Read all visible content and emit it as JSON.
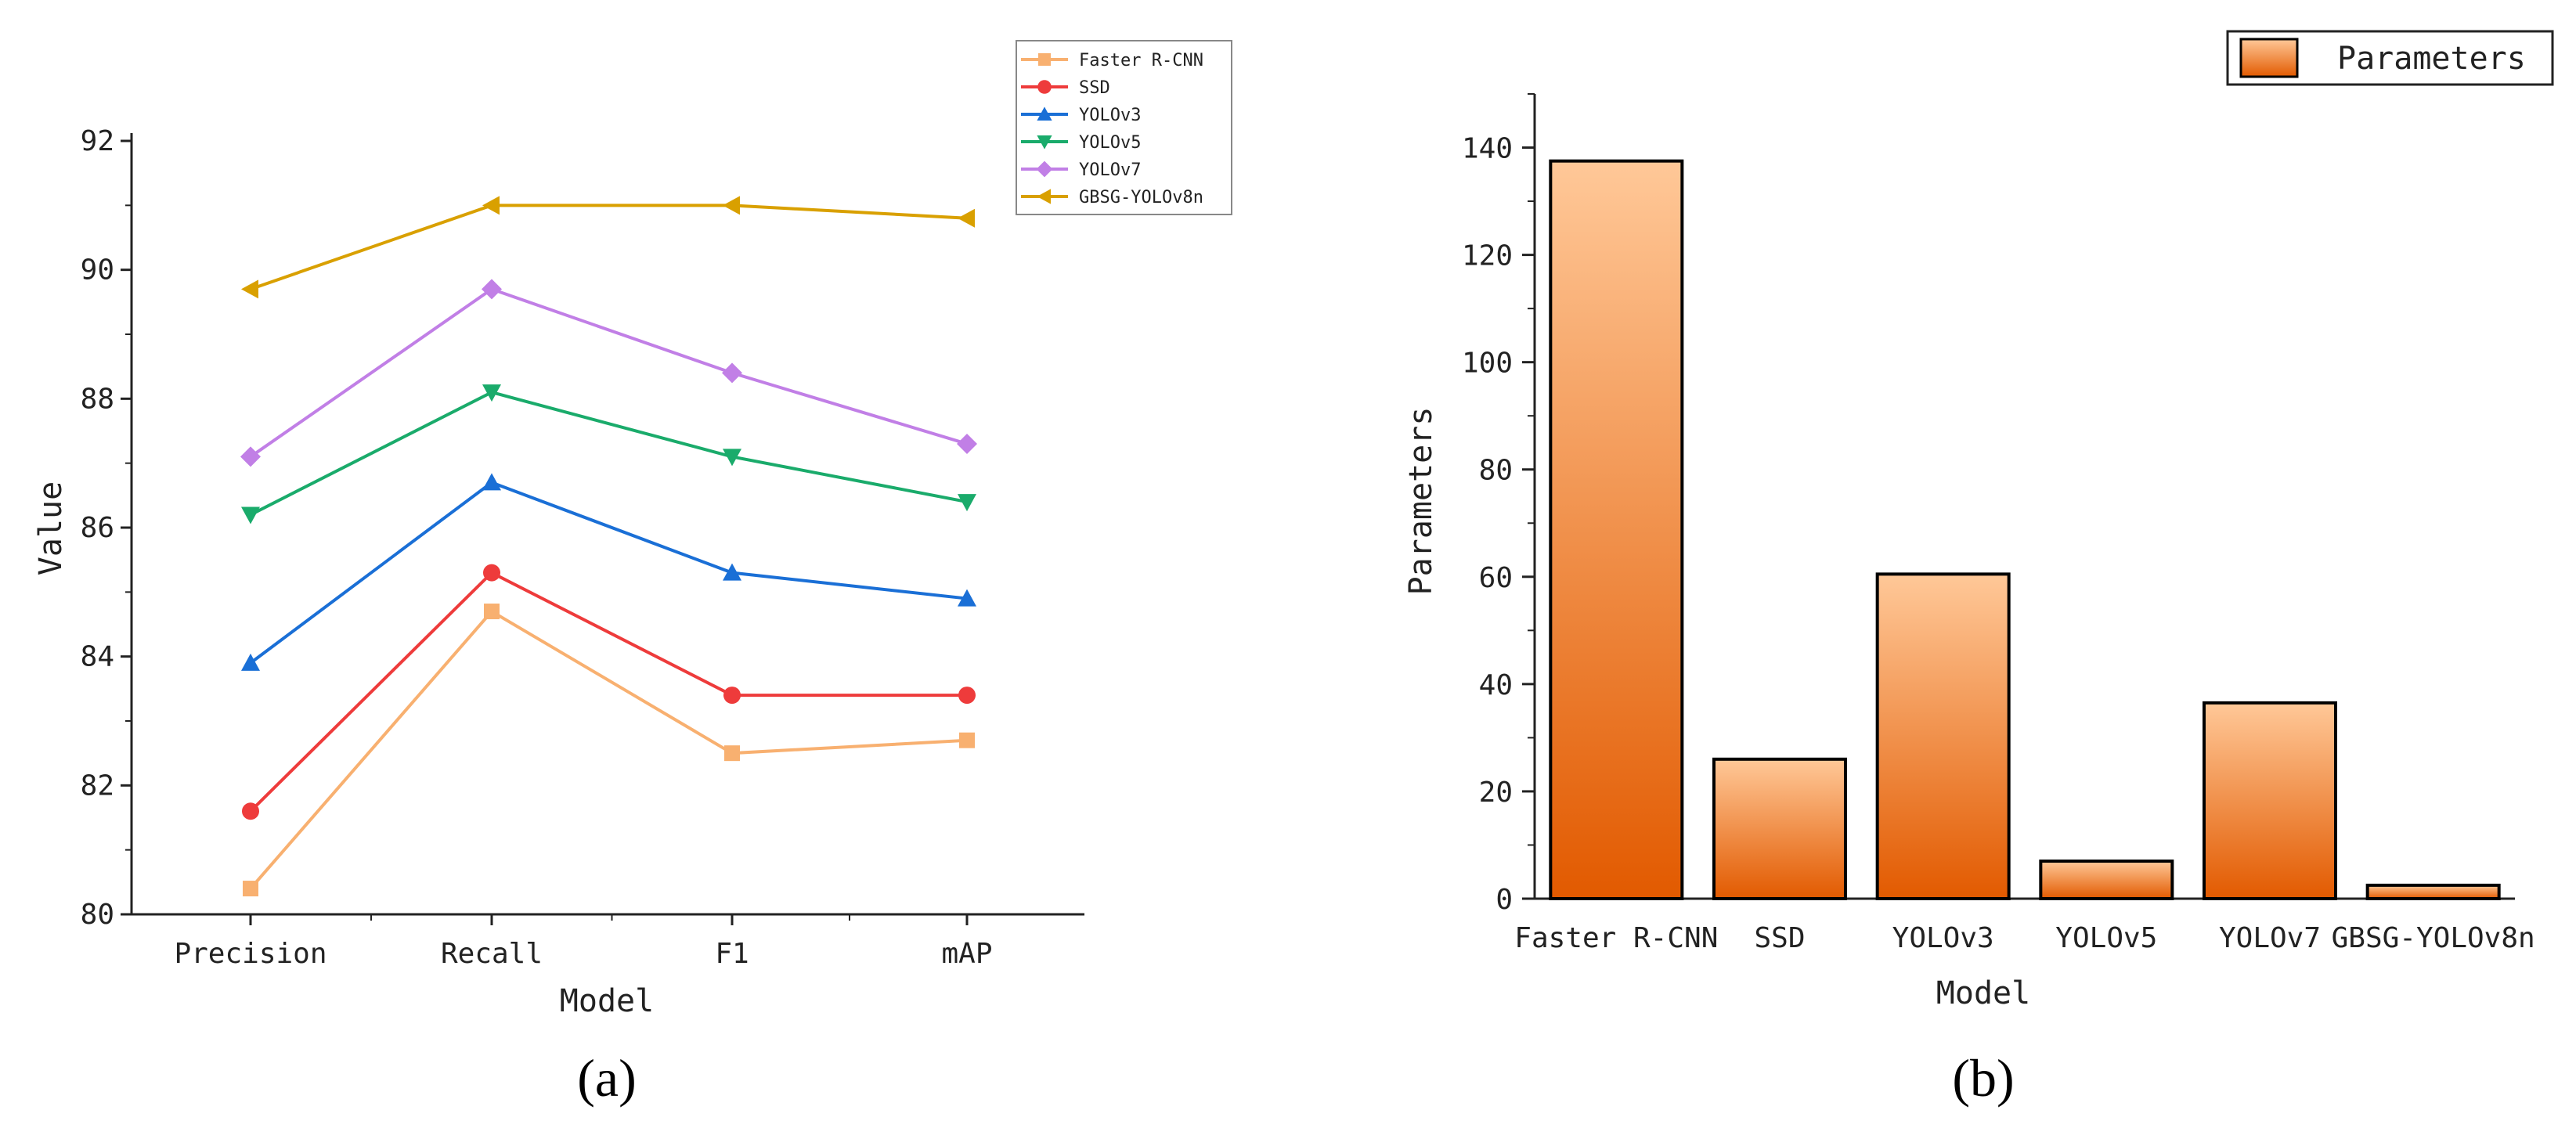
{
  "chart_data": [
    {
      "type": "line",
      "panel_label": "(a)",
      "categories": [
        "Precision",
        "Recall",
        "F1",
        "mAP"
      ],
      "xlabel": "Model",
      "ylabel": "Value",
      "ylim": [
        80,
        92
      ],
      "yticks": [
        80,
        82,
        84,
        86,
        88,
        90,
        92
      ],
      "legend_position": "top-right",
      "series": [
        {
          "name": "Faster R-CNN",
          "color": "#f8b070",
          "marker": "square",
          "values": [
            80.4,
            84.7,
            82.5,
            82.7
          ]
        },
        {
          "name": "SSD",
          "color": "#ee3b3b",
          "marker": "circle",
          "values": [
            81.6,
            85.3,
            83.4,
            83.4
          ]
        },
        {
          "name": "YOLOv3",
          "color": "#1a6fd6",
          "marker": "triangle-up",
          "values": [
            83.9,
            86.7,
            85.3,
            84.9
          ]
        },
        {
          "name": "YOLOv5",
          "color": "#1aab6b",
          "marker": "triangle-down",
          "values": [
            86.2,
            88.1,
            87.1,
            86.4
          ]
        },
        {
          "name": "YOLOv7",
          "color": "#c17fe6",
          "marker": "diamond",
          "values": [
            87.1,
            89.7,
            88.4,
            87.3
          ]
        },
        {
          "name": "GBSG-YOLOv8n",
          "color": "#d9a000",
          "marker": "triangle-left",
          "values": [
            89.7,
            91.0,
            91.0,
            90.8
          ]
        }
      ]
    },
    {
      "type": "bar",
      "panel_label": "(b)",
      "categories": [
        "Faster R-CNN",
        "SSD",
        "YOLOv3",
        "YOLOv5",
        "YOLOv7",
        "GBSG-YOLOv8n"
      ],
      "values": [
        137.5,
        26.0,
        60.5,
        7.0,
        36.5,
        2.5
      ],
      "xlabel": "Model",
      "ylabel": "Parameters",
      "ylim": [
        0,
        150
      ],
      "yticks": [
        0,
        20,
        40,
        60,
        80,
        100,
        120,
        140
      ],
      "legend": "Parameters",
      "legend_position": "top-right",
      "bar_color_top": "#ffc898",
      "bar_color_bottom": "#e25a00"
    }
  ]
}
